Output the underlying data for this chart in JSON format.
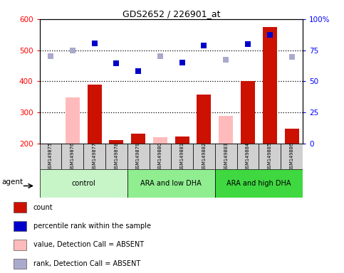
{
  "title": "GDS2652 / 226901_at",
  "samples": [
    "GSM149875",
    "GSM149876",
    "GSM149877",
    "GSM149878",
    "GSM149879",
    "GSM149880",
    "GSM149881",
    "GSM149882",
    "GSM149883",
    "GSM149884",
    "GSM149885",
    "GSM149886"
  ],
  "count_values": [
    200,
    348,
    390,
    210,
    230,
    220,
    222,
    358,
    288,
    400,
    575,
    248
  ],
  "count_absent": [
    true,
    true,
    false,
    false,
    false,
    true,
    false,
    false,
    true,
    false,
    false,
    false
  ],
  "blue_values": [
    480,
    498,
    522,
    458,
    432,
    480,
    460,
    515,
    470,
    520,
    550,
    478
  ],
  "blue_absent": [
    true,
    true,
    false,
    false,
    false,
    true,
    false,
    false,
    true,
    false,
    false,
    true
  ],
  "groups": [
    {
      "label": "control",
      "start": 0,
      "end": 4,
      "color": "#c8f5c8"
    },
    {
      "label": "ARA and low DHA",
      "start": 4,
      "end": 8,
      "color": "#90ee90"
    },
    {
      "label": "ARA and high DHA",
      "start": 8,
      "end": 12,
      "color": "#40d840"
    }
  ],
  "ylim_left": [
    200,
    600
  ],
  "yticks_left": [
    200,
    300,
    400,
    500,
    600
  ],
  "yticks_right": [
    0,
    25,
    50,
    75,
    100
  ],
  "hlines": [
    300,
    400,
    500
  ],
  "bar_color_present": "#cc1100",
  "bar_color_absent": "#ffbbbb",
  "dot_color_present": "#0000cc",
  "dot_color_absent": "#aaaacc",
  "sample_box_color": "#d0d0d0",
  "agent_label": "agent",
  "legend": [
    {
      "color": "#cc1100",
      "label": "count"
    },
    {
      "color": "#0000cc",
      "label": "percentile rank within the sample"
    },
    {
      "color": "#ffbbbb",
      "label": "value, Detection Call = ABSENT"
    },
    {
      "color": "#aaaacc",
      "label": "rank, Detection Call = ABSENT"
    }
  ]
}
